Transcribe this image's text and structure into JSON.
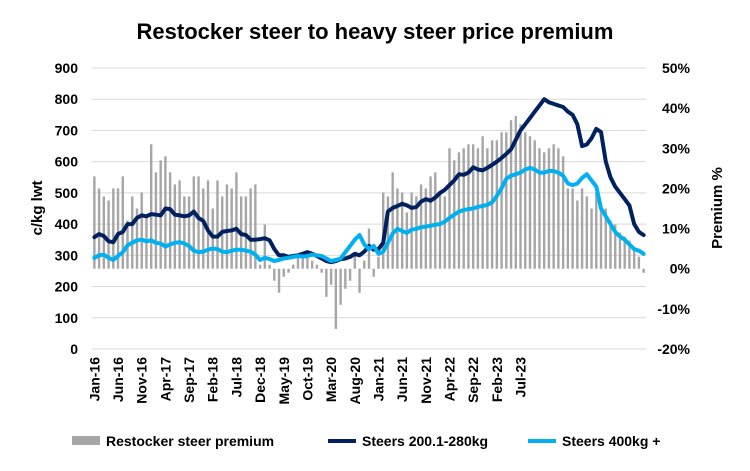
{
  "chart_data": {
    "type": "bar+line",
    "title": "Restocker steer to heavy steer price premium",
    "ylabel": "c/kg lwt",
    "y2label": "Premium %",
    "ylim": [
      0,
      900
    ],
    "y2lim": [
      -0.2,
      0.5
    ],
    "yticks": [
      "0",
      "100",
      "200",
      "300",
      "400",
      "500",
      "600",
      "700",
      "800",
      "900"
    ],
    "y2ticks": [
      "-20%",
      "-10%",
      "0%",
      "10%",
      "20%",
      "30%",
      "40%",
      "50%"
    ],
    "x_tick_labels": [
      "Jan-16",
      "Jun-16",
      "Nov-16",
      "Apr-17",
      "Sep-17",
      "Feb-18",
      "Jul-18",
      "Dec-18",
      "May-19",
      "Oct-19",
      "Mar-20",
      "Aug-20",
      "Jan-21",
      "Jun-21",
      "Nov-21",
      "Apr-22",
      "Sep-22",
      "Feb-23",
      "Jul-23"
    ],
    "start_month": "Jan-16",
    "legend": [
      "Restocker steer premium",
      "Steers 200.1-280kg",
      "Steers 400kg +"
    ],
    "series": [
      {
        "name": "Restocker steer premium",
        "type": "bar",
        "axis": "right",
        "color": "#a6a6a6",
        "values": [
          0.23,
          0.2,
          0.18,
          0.17,
          0.2,
          0.2,
          0.23,
          0.12,
          0.18,
          0.15,
          0.19,
          0.13,
          0.31,
          0.24,
          0.27,
          0.28,
          0.24,
          0.21,
          0.22,
          0.18,
          0.18,
          0.23,
          0.23,
          0.2,
          0.22,
          0.15,
          0.22,
          0.18,
          0.21,
          0.2,
          0.24,
          0.18,
          0.18,
          0.2,
          0.21,
          0.01,
          0.11,
          0.01,
          -0.03,
          -0.06,
          -0.02,
          -0.01,
          0.01,
          0.03,
          0.04,
          0.03,
          0.02,
          0.01,
          -0.01,
          -0.07,
          -0.04,
          -0.15,
          -0.09,
          -0.05,
          -0.03,
          0.04,
          -0.06,
          0.02,
          0.1,
          -0.02,
          0.03,
          0.19,
          0.18,
          0.24,
          0.2,
          0.19,
          0.14,
          0.19,
          0.18,
          0.21,
          0.2,
          0.23,
          0.24,
          0.19,
          0.18,
          0.3,
          0.27,
          0.29,
          0.3,
          0.31,
          0.31,
          0.3,
          0.33,
          0.3,
          0.32,
          0.32,
          0.34,
          0.34,
          0.37,
          0.38,
          0.36,
          0.34,
          0.33,
          0.32,
          0.3,
          0.29,
          0.3,
          0.31,
          0.3,
          0.28,
          0.2,
          0.2,
          0.17,
          0.2,
          0.18,
          0.15,
          0.19,
          0.15,
          0.15,
          0.12,
          0.11,
          0.09,
          0.08,
          0.07,
          0.05,
          0.03,
          -0.01
        ]
      },
      {
        "name": "Steers 200.1-280kg",
        "type": "line",
        "axis": "left",
        "color": "#002060",
        "values": [
          358,
          368,
          362,
          345,
          342,
          368,
          375,
          400,
          400,
          420,
          428,
          425,
          432,
          430,
          428,
          450,
          448,
          430,
          428,
          425,
          428,
          440,
          420,
          410,
          380,
          360,
          360,
          375,
          378,
          380,
          385,
          368,
          365,
          350,
          350,
          352,
          355,
          348,
          320,
          300,
          300,
          295,
          298,
          300,
          305,
          310,
          305,
          298,
          290,
          282,
          278,
          282,
          288,
          290,
          295,
          305,
          300,
          312,
          330,
          318,
          320,
          340,
          440,
          452,
          458,
          465,
          460,
          452,
          455,
          472,
          480,
          475,
          485,
          500,
          510,
          525,
          540,
          560,
          558,
          565,
          582,
          575,
          572,
          580,
          590,
          600,
          612,
          625,
          640,
          670,
          700,
          720,
          740,
          760,
          780,
          800,
          790,
          785,
          780,
          775,
          760,
          750,
          720,
          650,
          655,
          675,
          705,
          695,
          600,
          550,
          520,
          500,
          480,
          460,
          400,
          375,
          365
        ]
      },
      {
        "name": "Steers 400kg +",
        "type": "line",
        "axis": "left",
        "color": "#00b0f0",
        "values": [
          292,
          300,
          302,
          292,
          285,
          298,
          310,
          332,
          340,
          348,
          350,
          345,
          348,
          340,
          338,
          328,
          335,
          340,
          342,
          338,
          330,
          315,
          310,
          312,
          318,
          322,
          320,
          312,
          310,
          315,
          318,
          318,
          315,
          312,
          302,
          285,
          292,
          288,
          282,
          285,
          290,
          292,
          295,
          298,
          296,
          298,
          302,
          300,
          298,
          290,
          282,
          285,
          290,
          310,
          330,
          350,
          365,
          335,
          320,
          330,
          305,
          312,
          340,
          370,
          385,
          378,
          372,
          382,
          385,
          390,
          392,
          395,
          398,
          400,
          408,
          420,
          430,
          440,
          445,
          448,
          450,
          455,
          458,
          462,
          470,
          490,
          515,
          545,
          555,
          560,
          565,
          575,
          580,
          575,
          565,
          565,
          570,
          570,
          565,
          555,
          530,
          525,
          530,
          548,
          560,
          540,
          520,
          450,
          425,
          400,
          375,
          360,
          350,
          335,
          320,
          315,
          305
        ]
      }
    ]
  }
}
